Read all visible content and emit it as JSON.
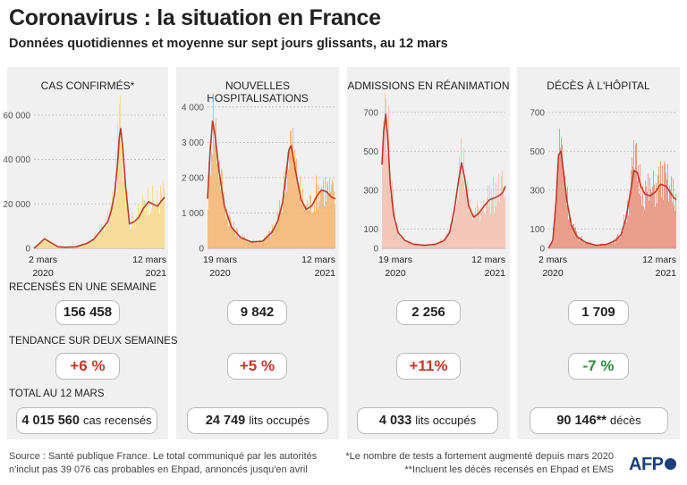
{
  "title": "Coronavirus : la situation en France",
  "subtitle": "Données quotidiennes et moyenne sur sept jours glissants, au 12 mars",
  "sections": {
    "weekly": "RECENSÉS EN UNE SEMAINE",
    "trend": "TENDANCE SUR DEUX SEMAINES",
    "total": "TOTAL AU 12 MARS"
  },
  "colors": {
    "panel_bg": "#f0f0f0",
    "bars": "#f5b56f",
    "line": "#c0392b",
    "up": "#c0392b",
    "down": "#2e8b3e"
  },
  "chart_data": [
    {
      "type": "area",
      "title": "CAS CONFIRMÉS*",
      "color": "#f8d98a",
      "ylim": [
        0,
        70000
      ],
      "yticks": [
        "0",
        "20 000",
        "40 000",
        "60 000"
      ],
      "ytick_values": [
        0,
        20000,
        40000,
        60000
      ],
      "xlabels": [
        [
          "2 mars",
          "2020"
        ],
        [
          "12 mars",
          "2021"
        ]
      ],
      "grid": true,
      "x": [
        "2020-03-02",
        "2020-03-20",
        "2020-04-01",
        "2020-04-20",
        "2020-05-10",
        "2020-06-01",
        "2020-07-01",
        "2020-08-01",
        "2020-08-20",
        "2020-09-10",
        "2020-09-30",
        "2020-10-10",
        "2020-10-20",
        "2020-10-28",
        "2020-11-02",
        "2020-11-06",
        "2020-11-12",
        "2020-11-20",
        "2020-12-01",
        "2020-12-15",
        "2020-12-28",
        "2021-01-10",
        "2021-01-25",
        "2021-02-05",
        "2021-02-20",
        "2021-03-01",
        "2021-03-12"
      ],
      "avg": [
        0,
        2500,
        4300,
        2500,
        700,
        500,
        700,
        2200,
        4000,
        8000,
        12000,
        17000,
        25000,
        38000,
        50000,
        54000,
        45000,
        28000,
        11000,
        12000,
        14000,
        18000,
        21000,
        20000,
        19000,
        21000,
        23000
      ],
      "summary": {
        "weekly": "156 458",
        "trend": "+6 %",
        "trend_dir": "up",
        "total_value": "4 015 560",
        "total_unit": "cas recensés"
      }
    },
    {
      "type": "area",
      "title": "NOUVELLES HOSPITALISATIONS",
      "color": "#f5b56f",
      "ylim": [
        0,
        4400
      ],
      "yticks": [
        "0",
        "1 000",
        "2 000",
        "3 000",
        "4 000"
      ],
      "ytick_values": [
        0,
        1000,
        2000,
        3000,
        4000
      ],
      "xlabels": [
        [
          "19 mars",
          "2020"
        ],
        [
          "12 mars",
          "2021"
        ]
      ],
      "grid": true,
      "x": [
        "2020-03-19",
        "2020-03-26",
        "2020-04-02",
        "2020-04-09",
        "2020-04-20",
        "2020-05-05",
        "2020-05-25",
        "2020-06-20",
        "2020-07-20",
        "2020-08-20",
        "2020-09-15",
        "2020-10-01",
        "2020-10-15",
        "2020-10-25",
        "2020-11-02",
        "2020-11-08",
        "2020-11-20",
        "2020-12-05",
        "2020-12-20",
        "2021-01-05",
        "2021-01-20",
        "2021-02-01",
        "2021-02-15",
        "2021-03-01",
        "2021-03-12"
      ],
      "avg": [
        1400,
        2700,
        3600,
        3200,
        2200,
        1200,
        600,
        300,
        180,
        200,
        450,
        750,
        1300,
        2100,
        2800,
        2900,
        2200,
        1400,
        1100,
        1200,
        1500,
        1650,
        1600,
        1450,
        1400
      ],
      "summary": {
        "weekly": "9 842",
        "trend": "+5 %",
        "trend_dir": "up",
        "total_value": "24 749",
        "total_unit": "lits occupés"
      }
    },
    {
      "type": "area",
      "title": "ADMISSIONS EN RÉANIMATION",
      "color": "#f6bfae",
      "ylim": [
        0,
        800
      ],
      "yticks": [
        "0",
        "100",
        "300",
        "500",
        "700"
      ],
      "ytick_values": [
        0,
        100,
        300,
        500,
        700
      ],
      "xlabels": [
        [
          "19 mars",
          "2020"
        ],
        [
          "12 mars",
          "2021"
        ]
      ],
      "grid": true,
      "x": [
        "2020-03-19",
        "2020-03-24",
        "2020-03-30",
        "2020-04-05",
        "2020-04-12",
        "2020-04-22",
        "2020-05-05",
        "2020-05-25",
        "2020-06-20",
        "2020-07-20",
        "2020-08-20",
        "2020-09-15",
        "2020-10-01",
        "2020-10-15",
        "2020-10-28",
        "2020-11-05",
        "2020-11-15",
        "2020-11-25",
        "2020-12-10",
        "2020-12-25",
        "2021-01-10",
        "2021-01-25",
        "2021-02-10",
        "2021-02-25",
        "2021-03-05",
        "2021-03-12"
      ],
      "avg": [
        430,
        600,
        690,
        560,
        330,
        170,
        80,
        40,
        20,
        15,
        20,
        40,
        80,
        200,
        360,
        440,
        350,
        220,
        160,
        180,
        220,
        250,
        260,
        275,
        290,
        320
      ],
      "summary": {
        "weekly": "2 256",
        "trend": "+11%",
        "trend_dir": "up",
        "total_value": "4 033",
        "total_unit": "lits occupés"
      }
    },
    {
      "type": "area",
      "title": "DÉCÈS À L'HÔPITAL",
      "color": "#e8907a",
      "ylim": [
        0,
        800
      ],
      "yticks": [
        "0",
        "100",
        "300",
        "500",
        "700"
      ],
      "ytick_values": [
        0,
        100,
        300,
        500,
        700
      ],
      "xlabels": [
        [
          "2 mars",
          "2020"
        ],
        [
          "12 mars",
          "2021"
        ]
      ],
      "grid": true,
      "x": [
        "2020-03-02",
        "2020-03-15",
        "2020-03-25",
        "2020-04-01",
        "2020-04-08",
        "2020-04-15",
        "2020-04-25",
        "2020-05-08",
        "2020-05-25",
        "2020-06-20",
        "2020-07-20",
        "2020-08-20",
        "2020-09-15",
        "2020-10-01",
        "2020-10-15",
        "2020-10-28",
        "2020-11-08",
        "2020-11-18",
        "2020-11-28",
        "2020-12-10",
        "2020-12-25",
        "2021-01-10",
        "2021-01-25",
        "2021-02-10",
        "2021-02-25",
        "2021-03-05",
        "2021-03-12"
      ],
      "avg": [
        0,
        40,
        250,
        480,
        500,
        400,
        250,
        120,
        60,
        30,
        15,
        20,
        40,
        70,
        150,
        280,
        400,
        390,
        320,
        280,
        270,
        290,
        330,
        320,
        280,
        260,
        250
      ],
      "summary": {
        "weekly": "1 709",
        "trend": "-7 %",
        "trend_dir": "down",
        "total_value": "90 146**",
        "total_unit": "décès"
      }
    }
  ],
  "footer": {
    "source_line1": "Source : Santé publique France. Le total communiqué par les autorités",
    "source_line2": "n'inclut pas 39 076 cas probables en Ehpad, annoncés jusqu'en avril",
    "note_line1": "*Le nombre de tests a fortement augmenté depuis mars 2020",
    "note_line2": "**Incluent les décès recensés en Ehpad et EMS"
  },
  "logo": "AFP"
}
